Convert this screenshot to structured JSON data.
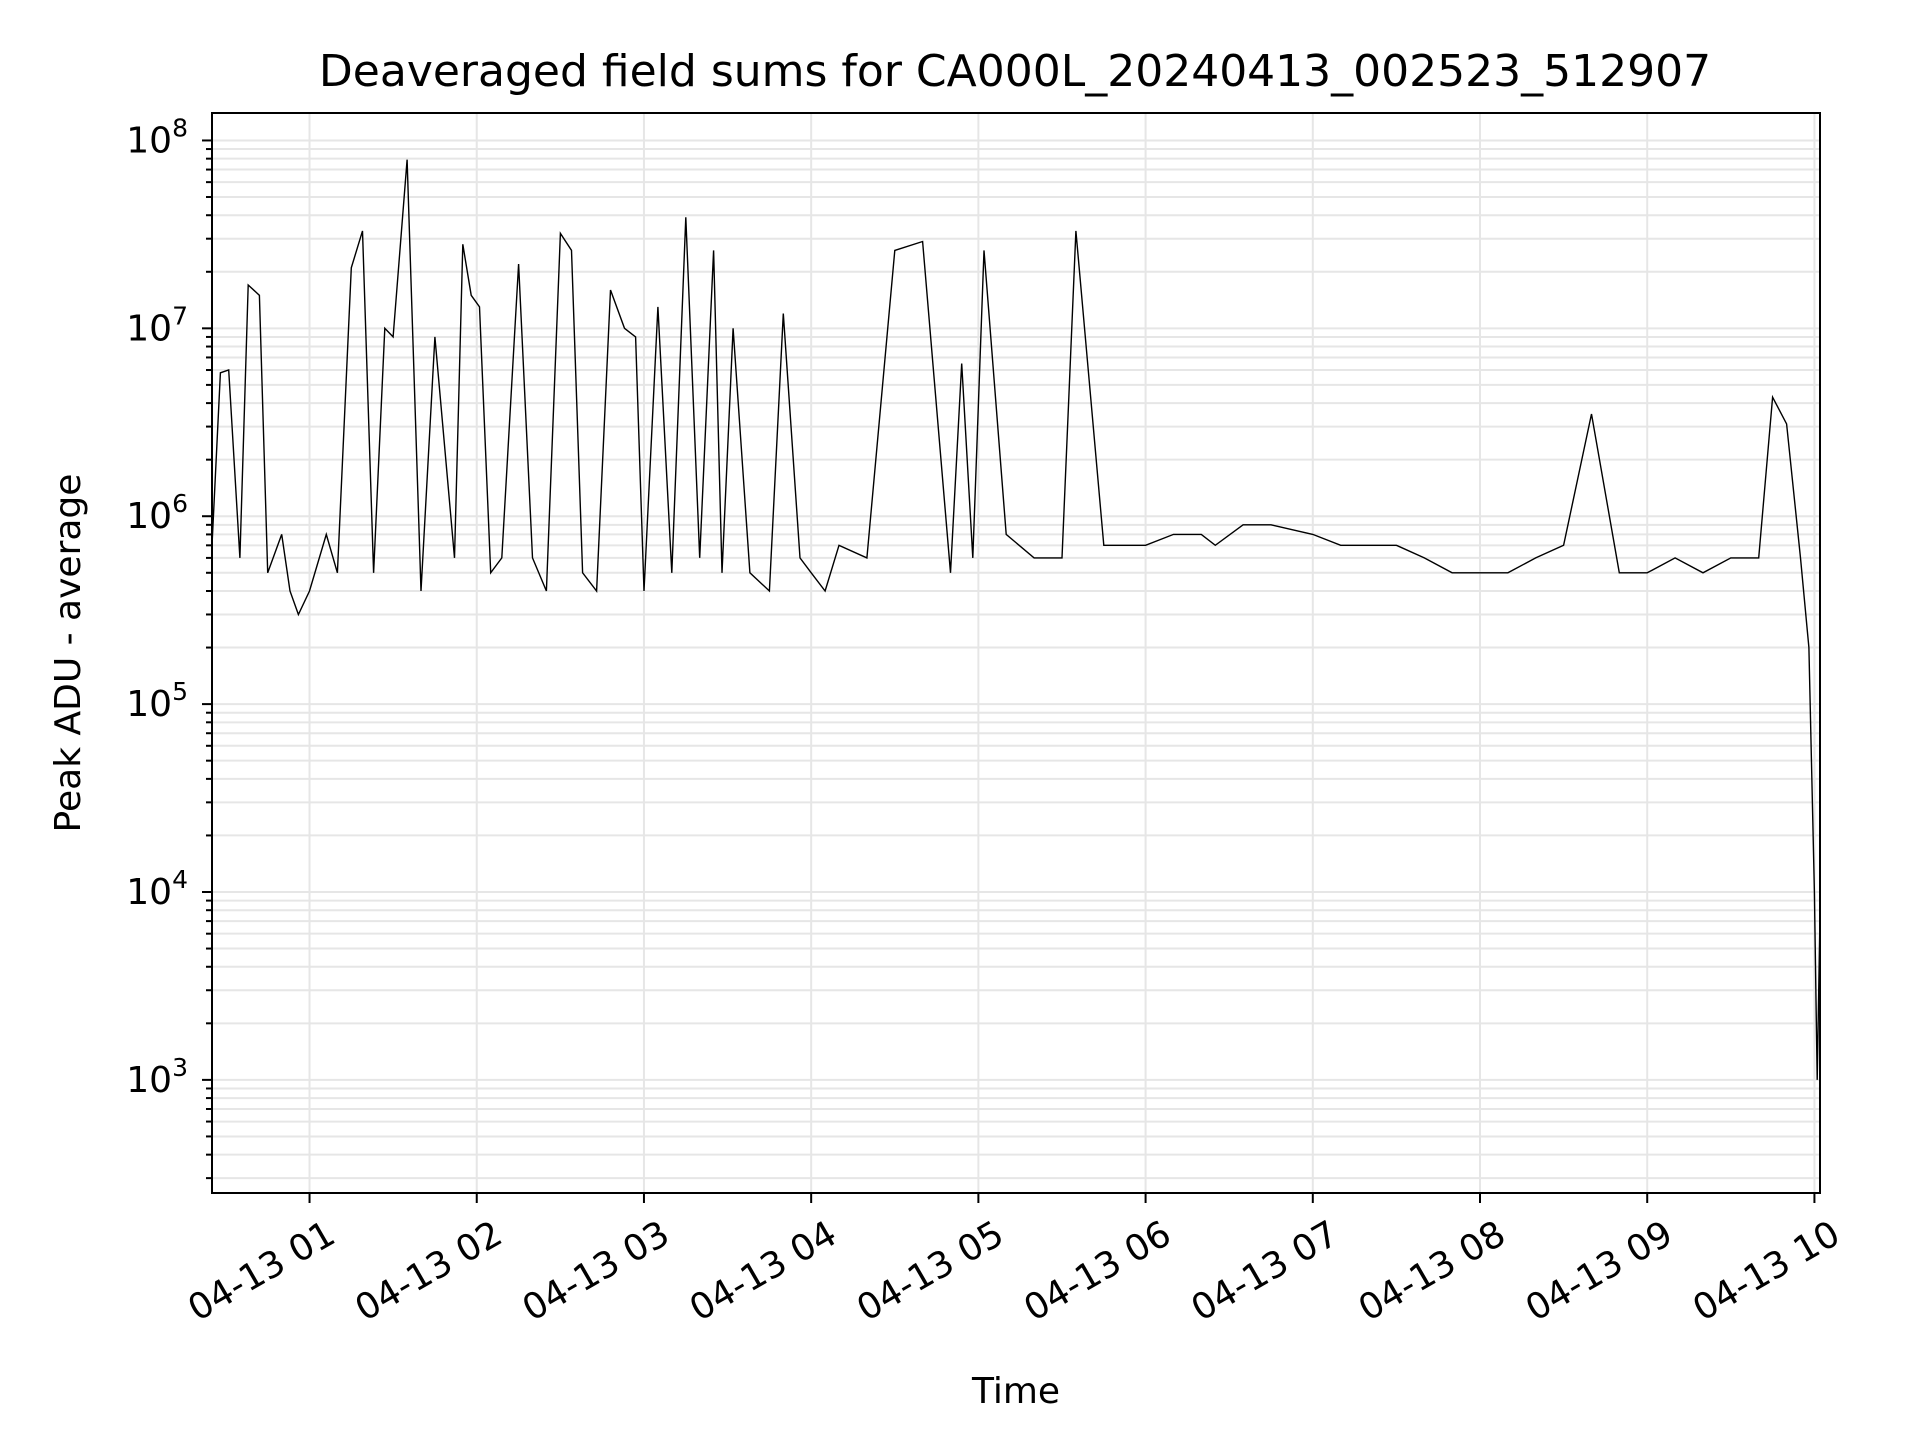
{
  "chart_data": {
    "type": "line",
    "title": "Deaveraged field sums for CA000L_20240413_002523_512907",
    "xlabel": "Time",
    "ylabel": "Peak ADU - average",
    "y_scale": "log",
    "ylim": [
      250,
      140000000
    ],
    "xlim": [
      "04-13 00:25",
      "04-13 10:02"
    ],
    "grid": true,
    "legend": "none",
    "line_color": "#000000",
    "x_ticks": [
      "04-13 01",
      "04-13 02",
      "04-13 03",
      "04-13 04",
      "04-13 05",
      "04-13 06",
      "04-13 07",
      "04-13 08",
      "04-13 09",
      "04-13 10"
    ],
    "x_tick_hours": [
      1,
      2,
      3,
      4,
      5,
      6,
      7,
      8,
      9,
      10
    ],
    "y_ticks": [
      1000,
      10000,
      100000,
      1000000,
      10000000,
      100000000
    ],
    "y_tick_labels": [
      {
        "base": "10",
        "exp": "3"
      },
      {
        "base": "10",
        "exp": "4"
      },
      {
        "base": "10",
        "exp": "5"
      },
      {
        "base": "10",
        "exp": "6"
      },
      {
        "base": "10",
        "exp": "7"
      },
      {
        "base": "10",
        "exp": "8"
      }
    ],
    "series": [
      {
        "values_note": "",
        "x": [
          "04-13 00:25",
          "04-13 00:28",
          "04-13 00:31",
          "04-13 00:35",
          "04-13 00:38",
          "04-13 00:42",
          "04-13 00:45",
          "04-13 00:50",
          "04-13 00:53",
          "04-13 00:56",
          "04-13 01:00",
          "04-13 01:06",
          "04-13 01:10",
          "04-13 01:15",
          "04-13 01:19",
          "04-13 01:23",
          "04-13 01:27",
          "04-13 01:30",
          "04-13 01:35",
          "04-13 01:40",
          "04-13 01:45",
          "04-13 01:52",
          "04-13 01:55",
          "04-13 01:58",
          "04-13 02:01",
          "04-13 02:05",
          "04-13 02:09",
          "04-13 02:15",
          "04-13 02:20",
          "04-13 02:25",
          "04-13 02:30",
          "04-13 02:34",
          "04-13 02:38",
          "04-13 02:43",
          "04-13 02:48",
          "04-13 02:53",
          "04-13 02:57",
          "04-13 03:00",
          "04-13 03:05",
          "04-13 03:10",
          "04-13 03:15",
          "04-13 03:20",
          "04-13 03:25",
          "04-13 03:28",
          "04-13 03:32",
          "04-13 03:38",
          "04-13 03:45",
          "04-13 03:50",
          "04-13 03:56",
          "04-13 04:00",
          "04-13 04:05",
          "04-13 04:10",
          "04-13 04:20",
          "04-13 04:30",
          "04-13 04:40",
          "04-13 04:50",
          "04-13 04:54",
          "04-13 04:58",
          "04-13 05:02",
          "04-13 05:10",
          "04-13 05:20",
          "04-13 05:30",
          "04-13 05:35",
          "04-13 05:45",
          "04-13 06:00",
          "04-13 06:10",
          "04-13 06:20",
          "04-13 06:25",
          "04-13 06:35",
          "04-13 06:45",
          "04-13 07:00",
          "04-13 07:10",
          "04-13 07:20",
          "04-13 07:30",
          "04-13 07:40",
          "04-13 07:50",
          "04-13 08:00",
          "04-13 08:10",
          "04-13 08:20",
          "04-13 08:30",
          "04-13 08:40",
          "04-13 08:50",
          "04-13 09:00",
          "04-13 09:10",
          "04-13 09:20",
          "04-13 09:30",
          "04-13 09:40",
          "04-13 09:45",
          "04-13 09:50",
          "04-13 09:55",
          "04-13 09:58",
          "04-13 10:00",
          "04-13 10:01",
          "04-13 10:02"
        ],
        "y": [
          700000,
          5800000,
          6000000,
          600000,
          17000000,
          15000000,
          500000,
          800000,
          400000,
          300000,
          400000,
          800000,
          500000,
          21000000,
          33000000,
          500000,
          10000000,
          9000000,
          79000000,
          400000,
          9000000,
          600000,
          28000000,
          15000000,
          13000000,
          500000,
          600000,
          22000000,
          600000,
          400000,
          32000000,
          26000000,
          500000,
          400000,
          16000000,
          10000000,
          9000000,
          400000,
          13000000,
          500000,
          39000000,
          600000,
          26000000,
          500000,
          10000000,
          500000,
          400000,
          12000000,
          600000,
          500000,
          400000,
          700000,
          600000,
          26000000,
          29000000,
          500000,
          6500000,
          600000,
          26000000,
          800000,
          600000,
          600000,
          33000000,
          700000,
          700000,
          800000,
          800000,
          700000,
          900000,
          900000,
          800000,
          700000,
          700000,
          700000,
          600000,
          500000,
          500000,
          500000,
          600000,
          700000,
          3500000,
          500000,
          500000,
          600000,
          500000,
          600000,
          600000,
          4300000,
          3100000,
          600000,
          200000,
          10000,
          1000,
          7500
        ]
      }
    ]
  }
}
